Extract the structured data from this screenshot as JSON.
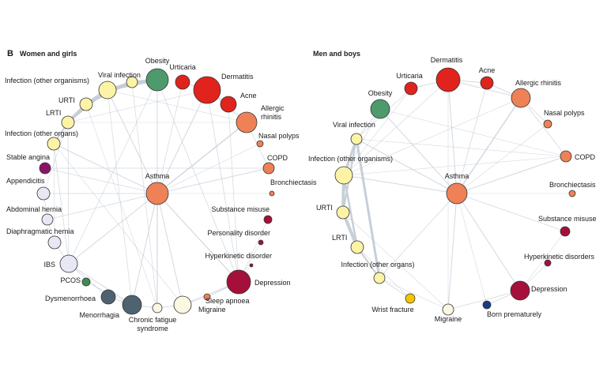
{
  "figure": {
    "panel_letter": "B",
    "colors": {
      "edge": "#c4ccd6",
      "node_stroke": "#333333",
      "red": "#e0231c",
      "orange": "#ef8156",
      "green": "#4f9a6c",
      "yellow": "#fdf3a6",
      "purple": "#8a1566",
      "lavender": "#e8e7f4",
      "slate": "#4e6270",
      "crimson": "#a5103a",
      "cream": "#fbf7e2",
      "gold": "#f5c400",
      "navy": "#173c84",
      "smallgreen": "#3e8c50"
    }
  },
  "panels": [
    {
      "title": "Women and girls",
      "nodes": [
        {
          "label": "Obesity",
          "color": "green"
        },
        {
          "label": "Urticaria",
          "color": "red"
        },
        {
          "label": "Dermatitis",
          "color": "red"
        },
        {
          "label": "Acne",
          "color": "red"
        },
        {
          "label": "Allergic rhinitis",
          "color": "orange"
        },
        {
          "label": "Nasal polyps",
          "color": "orange"
        },
        {
          "label": "COPD",
          "color": "orange"
        },
        {
          "label": "Bronchiectasis",
          "color": "orange"
        },
        {
          "label": "Substance misuse",
          "color": "crimson"
        },
        {
          "label": "Personality disorder",
          "color": "crimson"
        },
        {
          "label": "Hyperkinetic disorder",
          "color": "crimson"
        },
        {
          "label": "Depression",
          "color": "crimson"
        },
        {
          "label": "Sleep apnoea",
          "color": "orange"
        },
        {
          "label": "Migraine",
          "color": "cream"
        },
        {
          "label": "Chronic fatigue syndrome",
          "color": "cream"
        },
        {
          "label": "Menorrhagia",
          "color": "slate"
        },
        {
          "label": "Dysmenorrhoea",
          "color": "slate"
        },
        {
          "label": "PCOS",
          "color": "smallgreen"
        },
        {
          "label": "IBS",
          "color": "lavender"
        },
        {
          "label": "Diaphragmatic hernia",
          "color": "lavender"
        },
        {
          "label": "Abdominal hernia",
          "color": "lavender"
        },
        {
          "label": "Appendicitis",
          "color": "lavender"
        },
        {
          "label": "Stable angina",
          "color": "purple"
        },
        {
          "label": "Infection (other organs)",
          "color": "yellow"
        },
        {
          "label": "LRTI",
          "color": "yellow"
        },
        {
          "label": "URTI",
          "color": "yellow"
        },
        {
          "label": "Infection (other organisms)",
          "color": "yellow"
        },
        {
          "label": "Viral infection",
          "color": "yellow"
        },
        {
          "label": "Asthma",
          "color": "orange"
        }
      ]
    },
    {
      "title": "Men and boys",
      "nodes": [
        {
          "label": "Dermatitis",
          "color": "red"
        },
        {
          "label": "Urticaria",
          "color": "red"
        },
        {
          "label": "Acne",
          "color": "red"
        },
        {
          "label": "Obesity",
          "color": "green"
        },
        {
          "label": "Allergic rhinitis",
          "color": "orange"
        },
        {
          "label": "Nasal polyps",
          "color": "orange"
        },
        {
          "label": "COPD",
          "color": "orange"
        },
        {
          "label": "Bronchiectasis",
          "color": "orange"
        },
        {
          "label": "Substance misuse",
          "color": "crimson"
        },
        {
          "label": "Hyperkinetic disorders",
          "color": "crimson"
        },
        {
          "label": "Depression",
          "color": "crimson"
        },
        {
          "label": "Born prematurely",
          "color": "navy"
        },
        {
          "label": "Migraine",
          "color": "cream"
        },
        {
          "label": "Wrist fracture",
          "color": "gold"
        },
        {
          "label": "Infection (other organs)",
          "color": "yellow"
        },
        {
          "label": "LRTI",
          "color": "yellow"
        },
        {
          "label": "URTI",
          "color": "yellow"
        },
        {
          "label": "Infection (other organisms)",
          "color": "yellow"
        },
        {
          "label": "Viral infection",
          "color": "yellow"
        },
        {
          "label": "Asthma",
          "color": "orange"
        }
      ]
    }
  ]
}
